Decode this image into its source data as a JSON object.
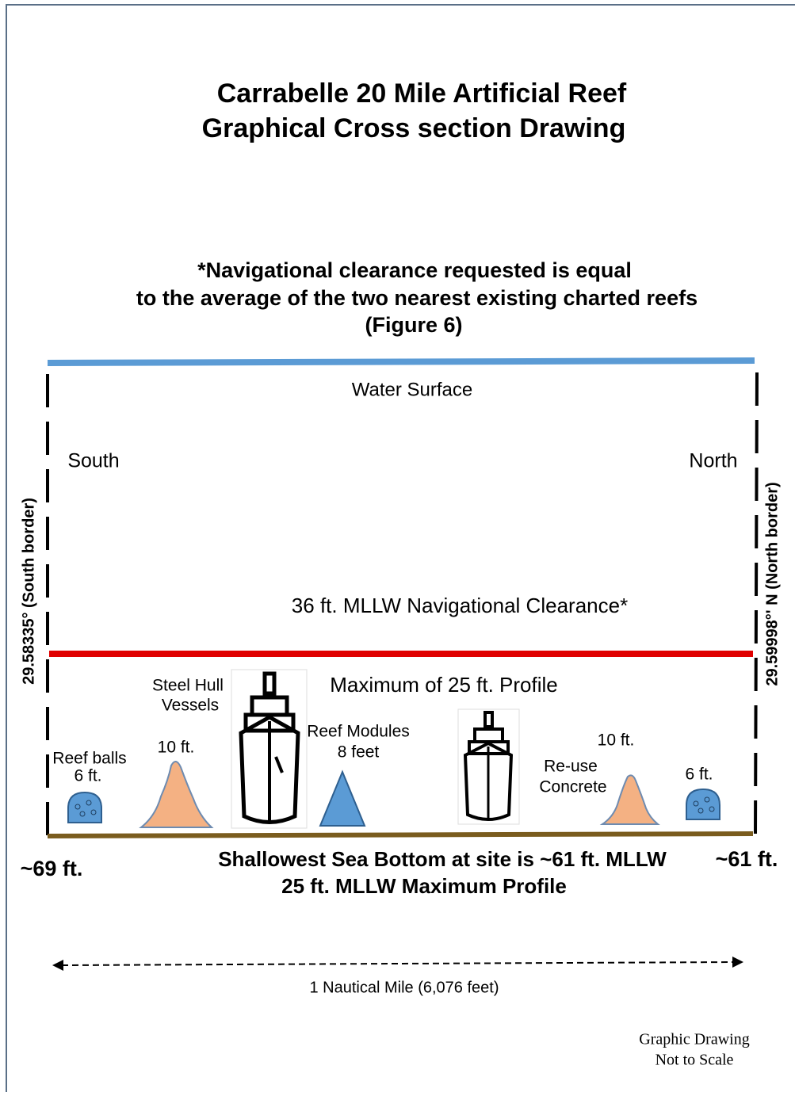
{
  "title": {
    "lines": [
      "Carrabelle 20 Mile Artificial Reef",
      "Graphical Cross section Drawing"
    ]
  },
  "note": {
    "lines": [
      "*Navigational clearance requested is equal",
      "to the average of the two nearest existing charted reefs",
      "(Figure 6)"
    ]
  },
  "surface": {
    "label": "Water Surface"
  },
  "directions": {
    "south": "South",
    "north": "North"
  },
  "borders": {
    "south": "29.58335° (South border)",
    "north": "29.59998°' N (North border)"
  },
  "clearance": {
    "label": "36 ft. MLLW Navigational Clearance*"
  },
  "profile": {
    "label": "Maximum of 25 ft. Profile"
  },
  "items": {
    "steel_hull": {
      "lines": [
        "Steel Hull",
        "Vessels"
      ]
    },
    "reef_modules": {
      "lines": [
        "Reef Modules",
        "8 feet"
      ]
    },
    "reef_balls_left": {
      "lines": [
        "Reef balls",
        "6 ft."
      ]
    },
    "mound_left": {
      "label": "10 ft."
    },
    "mound_right": {
      "label": "10 ft."
    },
    "reuse_concrete": {
      "lines": [
        "Re-use",
        "Concrete"
      ]
    },
    "reef_ball_right": {
      "label": "6 ft."
    }
  },
  "depths": {
    "south": "~69 ft.",
    "north": "~61 ft."
  },
  "bottom": {
    "lines": [
      "Shallowest Sea Bottom at site is ~61 ft. MLLW",
      "25 ft. MLLW Maximum Profile"
    ]
  },
  "scale": {
    "label": "1 Nautical Mile (6,076 feet)"
  },
  "disclaimer": {
    "lines": [
      "Graphic Drawing",
      "Not to Scale"
    ]
  }
}
